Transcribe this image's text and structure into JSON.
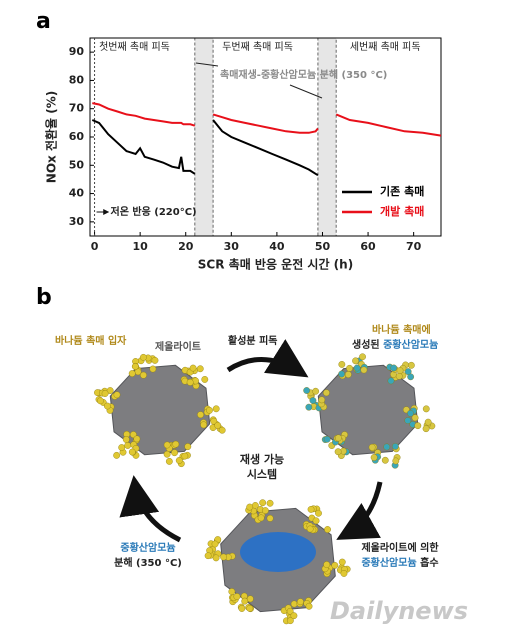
{
  "chart_data": {
    "type": "line",
    "panel_label": "a",
    "xlabel": "SCR 촉매 반응 운전 시간 (h)",
    "ylabel": "NOx 전환율 (%)",
    "xlim": [
      -1,
      76
    ],
    "ylim": [
      25,
      95
    ],
    "xticks": [
      0,
      10,
      20,
      30,
      40,
      50,
      60,
      70
    ],
    "yticks": [
      30,
      40,
      50,
      60,
      70,
      80,
      90
    ],
    "shaded_regions": [
      [
        22,
        26
      ],
      [
        49,
        53
      ]
    ],
    "annotations": [
      "첫번째 촉매 피독",
      "두번째 촉매 피독",
      "세번째 촉매 피독",
      "촉매재생-중황산암모늄 분해 (350 °C)",
      "저온 반응 (220°C)"
    ],
    "legend": "lower right",
    "x": [
      -0.5,
      1,
      3,
      5,
      7,
      9,
      10,
      11,
      13,
      15,
      17,
      18.5,
      19,
      19.5,
      21,
      22,
      24,
      26,
      28,
      30,
      33,
      36,
      39,
      42,
      45,
      47,
      48.5,
      49,
      51,
      53,
      56,
      60,
      64,
      68,
      72,
      76
    ],
    "series": [
      {
        "name": "기존 촉매",
        "color": "#000000",
        "values": [
          66,
          65,
          61,
          58,
          55,
          54,
          56,
          53,
          52,
          51,
          49.5,
          49,
          53,
          48,
          48,
          47,
          null,
          66,
          62,
          60,
          58,
          56,
          54,
          52,
          50,
          48.5,
          47,
          46.5,
          null,
          null,
          null,
          null,
          null,
          null,
          null,
          null
        ]
      },
      {
        "name": "개발 촉매",
        "color": "#e8101a",
        "values": [
          72,
          71.5,
          70,
          69,
          68,
          67.5,
          67,
          66.5,
          66,
          65.5,
          65,
          65,
          65,
          64.5,
          64.5,
          64,
          null,
          68,
          67,
          66,
          65,
          64,
          63,
          62,
          61.5,
          61.5,
          62,
          63,
          null,
          68,
          66,
          65,
          63.5,
          62,
          61.5,
          60.5
        ]
      }
    ]
  },
  "diagram": {
    "panel_label": "b",
    "particle": "바나듐 촉매 입자",
    "zeolite": "제올라이트",
    "poisoning": "활성분 피독",
    "formed_1": "바나듐 촉매에",
    "formed_2a": "생성된 ",
    "formed_2b": "중황산암모늄",
    "center_1": "재생 가능",
    "center_2": "시스템",
    "decomp_1": "중황산암모늄",
    "decomp_2": "분해 (350 °C)",
    "absorb_1": "제올라이트에 의한",
    "absorb_2a": "중황산암모늄",
    "absorb_2b": " 흡수",
    "watermark": "Dailynews"
  }
}
